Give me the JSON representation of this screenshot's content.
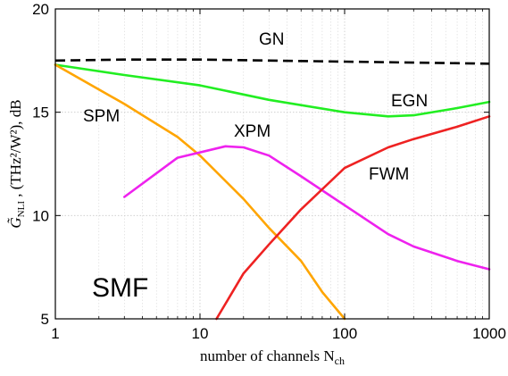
{
  "chart_data": {
    "type": "line",
    "title": "",
    "xlabel": "number of channels N",
    "xlabel_sub": "ch",
    "ylabel_symbol": "G̃",
    "ylabel_sub": "NLI",
    "ylabel_units": " , (THz²/W²), dB",
    "xscale": "log",
    "xlim": [
      1,
      1000
    ],
    "ylim": [
      5,
      20
    ],
    "x_ticks": [
      1,
      10,
      100,
      1000
    ],
    "x_tick_labels": [
      "1",
      "10",
      "100",
      "1000"
    ],
    "y_ticks": [
      5,
      10,
      15,
      20
    ],
    "y_tick_labels": [
      "5",
      "10",
      "15",
      "20"
    ],
    "grid": true,
    "annotation": "SMF",
    "series": [
      {
        "name": "GN",
        "color": "#000000",
        "dash": true,
        "x": [
          1,
          3,
          10,
          30,
          100,
          300,
          1000
        ],
        "y": [
          17.5,
          17.55,
          17.55,
          17.5,
          17.45,
          17.4,
          17.35
        ]
      },
      {
        "name": "EGN",
        "color": "#22ee22",
        "dash": false,
        "x": [
          1,
          3,
          10,
          30,
          100,
          200,
          300,
          600,
          1000
        ],
        "y": [
          17.3,
          16.8,
          16.3,
          15.6,
          15.0,
          14.8,
          14.85,
          15.2,
          15.5
        ]
      },
      {
        "name": "SPM",
        "color": "#ffa500",
        "dash": false,
        "x": [
          1,
          3,
          7,
          10,
          20,
          30,
          50,
          70,
          100
        ],
        "y": [
          17.3,
          15.4,
          13.8,
          12.9,
          10.8,
          9.4,
          7.8,
          6.3,
          5.0
        ]
      },
      {
        "name": "XPM",
        "color": "#ee22ee",
        "dash": false,
        "x": [
          3,
          7,
          15,
          20,
          30,
          50,
          100,
          200,
          300,
          600,
          1000
        ],
        "y": [
          10.9,
          12.8,
          13.35,
          13.3,
          12.9,
          11.9,
          10.5,
          9.1,
          8.5,
          7.8,
          7.4
        ]
      },
      {
        "name": "FWM",
        "color": "#ee2222",
        "dash": false,
        "x": [
          13,
          20,
          30,
          50,
          100,
          200,
          300,
          600,
          1000
        ],
        "y": [
          5.0,
          7.2,
          8.6,
          10.3,
          12.3,
          13.3,
          13.7,
          14.3,
          14.8
        ]
      }
    ]
  }
}
